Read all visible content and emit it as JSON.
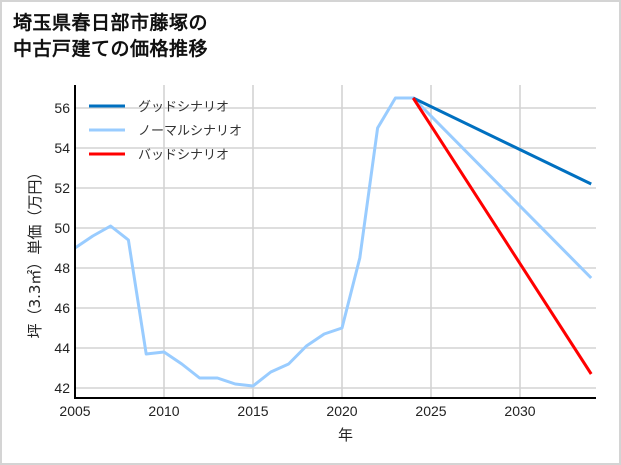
{
  "title": {
    "line1": "埼玉県春日部市藤塚の",
    "line2": "中古戸建ての価格推移"
  },
  "colors": {
    "good": "#0070c0",
    "normal": "#99ccff",
    "bad": "#ff0000",
    "grid": "#d3d3d3",
    "axis": "#000000"
  },
  "chart_data": {
    "type": "line",
    "title": "埼玉県春日部市藤塚の中古戸建ての価格推移",
    "xlabel": "年",
    "ylabel": "坪（3.3㎡）単価（万円）",
    "xlim": [
      2005,
      2034
    ],
    "ylim": [
      41.5,
      57.3
    ],
    "xticks": [
      2005,
      2010,
      2015,
      2020,
      2025,
      2030
    ],
    "yticks": [
      42,
      44,
      46,
      48,
      50,
      52,
      54,
      56
    ],
    "grid": true,
    "legend_position": "upper left",
    "series": [
      {
        "name": "グッドシナリオ",
        "color": "#0070c0",
        "x": [
          2024,
          2034
        ],
        "y": [
          56.5,
          52.2
        ]
      },
      {
        "name": "ノーマルシナリオ",
        "color": "#99ccff",
        "x": [
          2005,
          2006,
          2007,
          2008,
          2009,
          2010,
          2011,
          2012,
          2013,
          2014,
          2015,
          2016,
          2017,
          2018,
          2019,
          2020,
          2021,
          2022,
          2023,
          2024,
          2034
        ],
        "y": [
          49.0,
          49.6,
          50.1,
          49.4,
          43.7,
          43.8,
          43.2,
          42.5,
          42.5,
          42.2,
          42.1,
          42.8,
          43.2,
          44.1,
          44.7,
          45.0,
          48.5,
          55.0,
          56.5,
          56.5,
          47.5
        ]
      },
      {
        "name": "バッドシナリオ",
        "color": "#ff0000",
        "x": [
          2024,
          2034
        ],
        "y": [
          56.5,
          42.7
        ]
      }
    ]
  }
}
